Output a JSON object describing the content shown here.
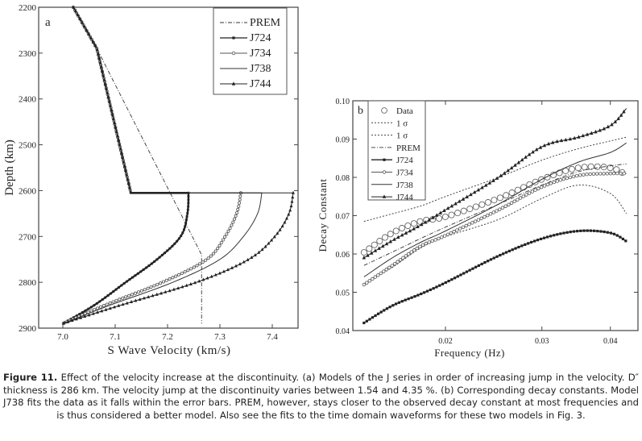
{
  "chart_data": [
    {
      "type": "line",
      "panel_label": "a",
      "xlabel": "S Wave Velocity (km/s)",
      "ylabel": "Depth (km)",
      "xlim": [
        6.954,
        7.449
      ],
      "ylim": [
        2900,
        2200
      ],
      "y_inverted": true,
      "xticks": [
        "7.0",
        "7.1",
        "7.2",
        "7.3",
        "7.4"
      ],
      "yticks": [
        "2200",
        "2300",
        "2400",
        "2500",
        "2600",
        "2700",
        "2800",
        "2900"
      ],
      "legend": "top-right",
      "grid": false,
      "series": [
        {
          "name": "PREM",
          "style": "dash-dot",
          "points": [
            [
              7.02,
              2200
            ],
            [
              7.065,
              2290
            ],
            [
              7.265,
              2740
            ],
            [
              7.265,
              2890
            ]
          ]
        },
        {
          "name": "J724",
          "style": "filled-square",
          "points": [
            [
              7.02,
              2200
            ],
            [
              7.065,
              2290
            ],
            [
              7.13,
              2605
            ],
            [
              7.24,
              2605
            ],
            [
              7.238,
              2650
            ],
            [
              7.225,
              2700
            ],
            [
              7.18,
              2750
            ],
            [
              7.12,
              2800
            ],
            [
              7.06,
              2850
            ],
            [
              7.0,
              2890
            ]
          ]
        },
        {
          "name": "J734",
          "style": "open-circle",
          "points": [
            [
              7.02,
              2200
            ],
            [
              7.065,
              2290
            ],
            [
              7.13,
              2605
            ],
            [
              7.34,
              2605
            ],
            [
              7.332,
              2650
            ],
            [
              7.31,
              2700
            ],
            [
              7.275,
              2750
            ],
            [
              7.19,
              2800
            ],
            [
              7.08,
              2850
            ],
            [
              7.0,
              2890
            ]
          ]
        },
        {
          "name": "J738",
          "style": "solid",
          "points": [
            [
              7.02,
              2200
            ],
            [
              7.065,
              2290
            ],
            [
              7.13,
              2605
            ],
            [
              7.38,
              2605
            ],
            [
              7.372,
              2650
            ],
            [
              7.345,
              2700
            ],
            [
              7.3,
              2750
            ],
            [
              7.21,
              2800
            ],
            [
              7.09,
              2850
            ],
            [
              7.0,
              2890
            ]
          ]
        },
        {
          "name": "J744",
          "style": "filled-triangle",
          "points": [
            [
              7.02,
              2200
            ],
            [
              7.065,
              2290
            ],
            [
              7.13,
              2605
            ],
            [
              7.44,
              2605
            ],
            [
              7.432,
              2650
            ],
            [
              7.405,
              2700
            ],
            [
              7.355,
              2750
            ],
            [
              7.255,
              2800
            ],
            [
              7.11,
              2850
            ],
            [
              7.0,
              2890
            ]
          ]
        }
      ]
    },
    {
      "type": "line",
      "panel_label": "b",
      "xlabel": "Frequency (Hz)",
      "ylabel": "Decay Constant",
      "x_scale": "log",
      "xlim": [
        0.0135,
        0.0449
      ],
      "ylim": [
        0.04,
        0.1
      ],
      "xticks": [
        "0.02",
        "0.03",
        "0.04"
      ],
      "yticks": [
        "0.04",
        "0.05",
        "0.06",
        "0.07",
        "0.08",
        "0.09",
        "0.10"
      ],
      "legend": "top-left",
      "grid": false,
      "x": [
        0.0142,
        0.016,
        0.018,
        0.02,
        0.025,
        0.03,
        0.035,
        0.04,
        0.0428
      ],
      "series": [
        {
          "name": "Data",
          "style": "open-circle-only",
          "values": [
            0.0604,
            0.0655,
            0.0685,
            0.0697,
            0.0745,
            0.0795,
            0.0825,
            0.0825,
            0.0806
          ]
        },
        {
          "name": "1 σ",
          "style": "dotted",
          "values": [
            0.0685,
            0.0705,
            0.0725,
            0.075,
            0.08,
            0.0845,
            0.0875,
            0.0895,
            0.0905
          ]
        },
        {
          "name": "1 σ",
          "style": "dotted",
          "values": [
            0.052,
            0.0565,
            0.0615,
            0.0645,
            0.069,
            0.0745,
            0.078,
            0.0758,
            0.0705
          ]
        },
        {
          "name": "PREM",
          "style": "dash-dot",
          "values": [
            0.057,
            0.0605,
            0.064,
            0.067,
            0.073,
            0.078,
            0.0815,
            0.083,
            0.0835
          ]
        },
        {
          "name": "J724",
          "style": "filled-square",
          "values": [
            0.042,
            0.0465,
            0.0495,
            0.0525,
            0.0595,
            0.064,
            0.066,
            0.0655,
            0.0633
          ]
        },
        {
          "name": "J734",
          "style": "open-circle",
          "values": [
            0.052,
            0.057,
            0.062,
            0.0648,
            0.0715,
            0.0775,
            0.0805,
            0.081,
            0.081
          ]
        },
        {
          "name": "J738",
          "style": "solid",
          "values": [
            0.054,
            0.059,
            0.063,
            0.066,
            0.073,
            0.0795,
            0.084,
            0.0865,
            0.089
          ]
        },
        {
          "name": "J744",
          "style": "filled-triangle",
          "values": [
            0.059,
            0.0635,
            0.0675,
            0.0715,
            0.08,
            0.088,
            0.0905,
            0.0935,
            0.098
          ]
        }
      ]
    }
  ],
  "caption": {
    "label": "Figure 11.",
    "text": " Effect of the velocity increase at the discontinuity. (a) Models of the J series in order of increasing jump in the velocity. D″ thickness is 286 km. The velocity jump at the discontinuity varies between 1.54 and 4.35 %. (b) Corresponding decay constants.  Model J738 fits the data as it falls within the error bars. PREM, however, stays closer to the observed decay constant at most frequencies and is thus considered a better model. Also see the fits to the time domain waveforms for these two models in Fig. 3."
  }
}
